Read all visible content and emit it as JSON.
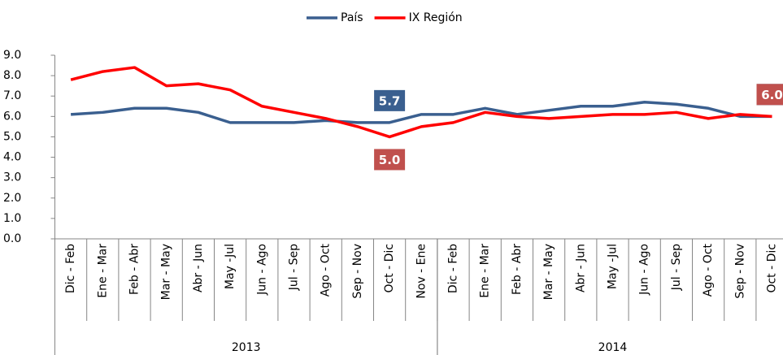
{
  "chart_data": {
    "type": "line",
    "categories": [
      "Dic - Feb",
      "Ene - Mar",
      "Feb - Abr",
      "Mar - May",
      "Abr - Jun",
      "May -Jul",
      "Jun - Ago",
      "Jul - Sep",
      "Ago - Oct",
      "Sep - Nov",
      "Oct - Dic",
      "Nov - Ene",
      "Dic - Feb",
      "Ene - Mar",
      "Feb - Abr",
      "Mar - May",
      "Abr - Jun",
      "May -Jul",
      "Jun - Ago",
      "Jul - Sep",
      "Ago - Oct",
      "Sep - Nov",
      "Oct - Dic"
    ],
    "groups": [
      {
        "name": "2013",
        "span": 12
      },
      {
        "name": "2014",
        "span": 11
      }
    ],
    "series": [
      {
        "name": "País",
        "color": "#3a5f8f",
        "values": [
          6.1,
          6.2,
          6.4,
          6.4,
          6.2,
          5.7,
          5.7,
          5.7,
          5.8,
          5.7,
          5.7,
          6.1,
          6.1,
          6.4,
          6.1,
          6.3,
          6.5,
          6.5,
          6.7,
          6.6,
          6.4,
          6.0,
          6.0
        ],
        "value_labels": [
          null,
          null,
          null,
          null,
          null,
          null,
          null,
          null,
          null,
          null,
          "5.7",
          null,
          null,
          null,
          null,
          null,
          null,
          null,
          null,
          null,
          null,
          null,
          "6.0"
        ],
        "label_color": "#3a5f8f"
      },
      {
        "name": "IX Región",
        "color": "#ff0000",
        "values": [
          7.8,
          8.2,
          8.4,
          7.5,
          7.6,
          7.3,
          6.5,
          6.2,
          5.9,
          5.5,
          5.0,
          5.5,
          5.7,
          6.2,
          6.0,
          5.9,
          6.0,
          6.1,
          6.1,
          6.2,
          5.9,
          6.1,
          6.0
        ],
        "value_labels": [
          null,
          null,
          null,
          null,
          null,
          null,
          null,
          null,
          null,
          null,
          "5.0",
          null,
          null,
          null,
          null,
          null,
          null,
          null,
          null,
          null,
          null,
          null,
          "6.0"
        ],
        "label_color": "#c0504d"
      }
    ],
    "ylim": [
      0,
      9
    ],
    "yticks": [
      {
        "value": 0,
        "label": "0.0"
      },
      {
        "value": 1,
        "label": "1.0"
      },
      {
        "value": 2,
        "label": "2.0"
      },
      {
        "value": 3,
        "label": "3.0"
      },
      {
        "value": 4,
        "label": "4.0"
      },
      {
        "value": 5,
        "label": "5.0"
      },
      {
        "value": 6,
        "label": "6.0"
      },
      {
        "value": 7,
        "label": "7.0"
      },
      {
        "value": 8,
        "label": "8.0"
      },
      {
        "value": 9,
        "label": "9.0"
      }
    ],
    "grid": false,
    "legend": "top"
  }
}
